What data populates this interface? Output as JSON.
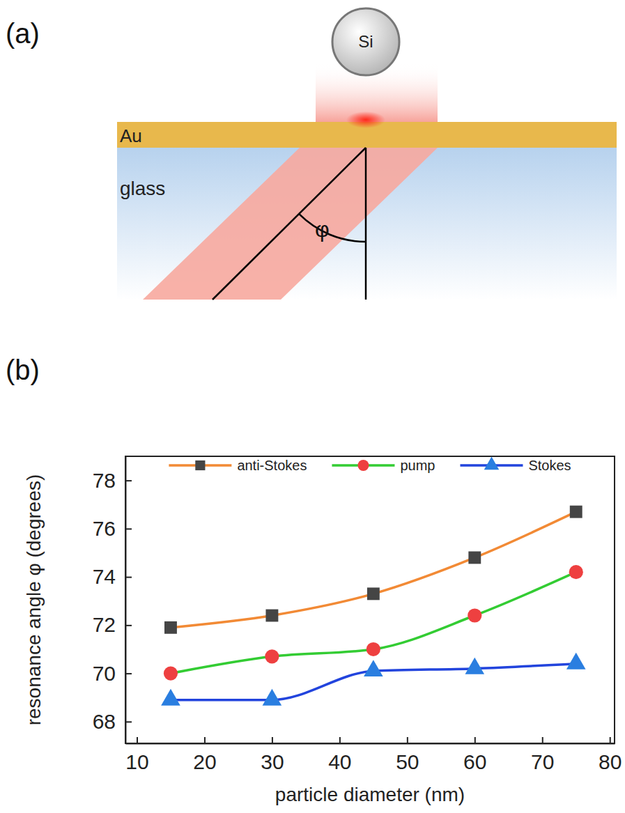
{
  "panel_labels": [
    "(a)",
    "(b)"
  ],
  "diagram": {
    "sphere": "Si",
    "layers": [
      "Au",
      "glass"
    ],
    "angle": "φ"
  },
  "chart_data": {
    "type": "line",
    "x_label": "particle diameter (nm)",
    "y_label": "resonance angle φ (degrees)",
    "x": [
      15,
      30,
      45,
      60,
      75
    ],
    "series": [
      {
        "name": "anti-Stokes",
        "color": "#f28a35",
        "marker": "square",
        "line_style": "solid",
        "values": [
          71.9,
          72.4,
          73.3,
          74.8,
          76.7
        ]
      },
      {
        "name": "pump",
        "color": "#33cc33",
        "marker": "circle",
        "line_style": "solid",
        "values": [
          70.0,
          70.7,
          71.0,
          72.4,
          74.2
        ]
      },
      {
        "name": "Stokes",
        "color": "#2244dd",
        "marker": "triangle",
        "line_style": "solid",
        "values": [
          68.9,
          68.9,
          70.1,
          70.2,
          70.4
        ]
      }
    ],
    "xlim": [
      8.3,
      80.7
    ],
    "xticks": [
      10,
      20,
      30,
      40,
      50,
      60,
      70,
      80
    ],
    "ylim": [
      67.1,
      79
    ],
    "yticks": [
      68,
      70,
      72,
      74,
      76,
      78
    ],
    "grid": false,
    "legend": "top"
  }
}
